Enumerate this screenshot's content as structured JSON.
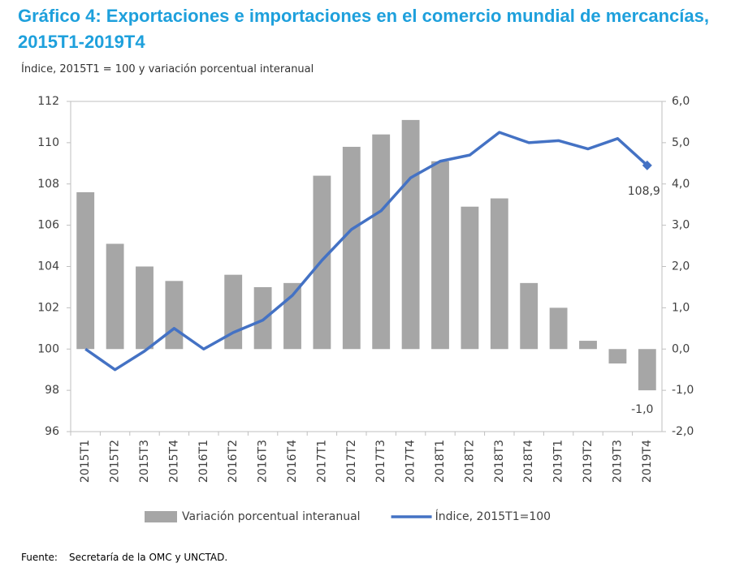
{
  "chart_data": {
    "type": "bar-line",
    "title": "Gráfico 4: Exportaciones e importaciones en el comercio mundial de mercancías, 2015T1-2019T4",
    "subtitle": "Índice, 2015T1 = 100 y variación porcentual interanual",
    "source_label": "Fuente:",
    "source": "Secretaría de la OMC y UNCTAD.",
    "categories": [
      "2015T1",
      "2015T2",
      "2015T3",
      "2015T4",
      "2016T1",
      "2016T2",
      "2016T3",
      "2016T4",
      "2017T1",
      "2017T2",
      "2017T3",
      "2017T4",
      "2018T1",
      "2018T2",
      "2018T3",
      "2018T4",
      "2019T1",
      "2019T2",
      "2019T3",
      "2019T4"
    ],
    "series": [
      {
        "name": "Variación porcentual interanual",
        "type": "bar",
        "axis": "y2",
        "color": "#a6a6a6",
        "values": [
          3.8,
          2.55,
          2.0,
          1.65,
          0,
          1.8,
          1.5,
          1.6,
          4.2,
          4.9,
          5.2,
          5.55,
          4.55,
          3.45,
          3.65,
          1.6,
          1.0,
          0.2,
          -0.35,
          -1.0
        ],
        "value_labels": [
          null,
          null,
          null,
          null,
          null,
          null,
          null,
          null,
          null,
          null,
          null,
          null,
          null,
          null,
          null,
          null,
          null,
          null,
          null,
          "-1,0"
        ]
      },
      {
        "name": "Índice, 2015T1=100",
        "type": "line",
        "axis": "y",
        "color": "#4472c4",
        "values": [
          100.0,
          99.0,
          99.9,
          101.0,
          100.0,
          100.8,
          101.4,
          102.6,
          104.3,
          105.8,
          106.7,
          108.3,
          109.1,
          109.4,
          110.5,
          110.0,
          110.1,
          109.7,
          110.2,
          108.9
        ],
        "value_labels": [
          null,
          null,
          null,
          null,
          null,
          null,
          null,
          null,
          null,
          null,
          null,
          null,
          null,
          null,
          null,
          null,
          null,
          null,
          null,
          "108,9"
        ]
      }
    ],
    "ylim": [
      96,
      112
    ],
    "yticks": [
      96,
      98,
      100,
      102,
      104,
      106,
      108,
      110,
      112
    ],
    "y2lim": [
      -2,
      6
    ],
    "y2ticks": [
      {
        "value": -2,
        "label": "-2,0"
      },
      {
        "value": -1,
        "label": "-1,0"
      },
      {
        "value": 0,
        "label": "0,0"
      },
      {
        "value": 1,
        "label": "1,0"
      },
      {
        "value": 2,
        "label": "2,0"
      },
      {
        "value": 3,
        "label": "3,0"
      },
      {
        "value": 4,
        "label": "4,0"
      },
      {
        "value": 5,
        "label": "5,0"
      },
      {
        "value": 6,
        "label": "6,0"
      }
    ],
    "grid": false,
    "legend": "bottom"
  }
}
